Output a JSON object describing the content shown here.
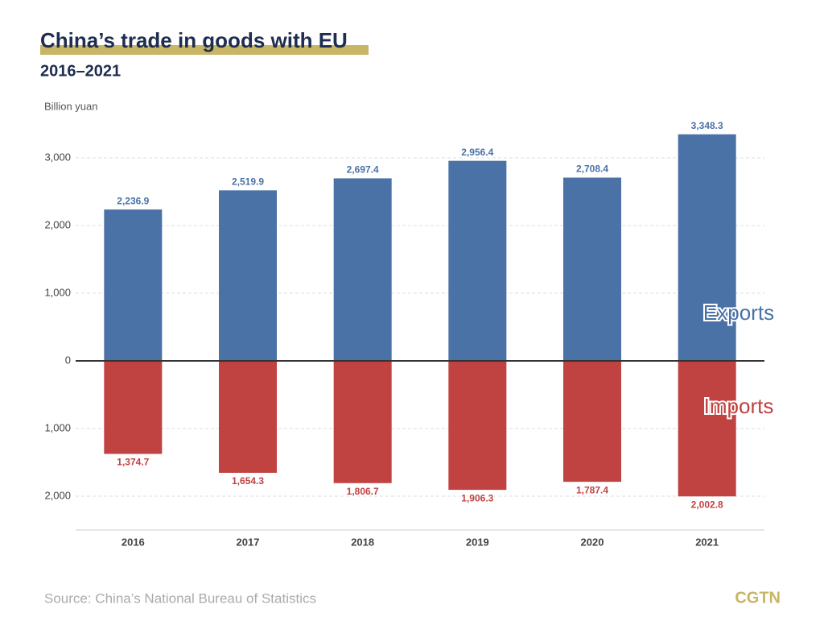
{
  "chart_data": {
    "type": "diverging-bar",
    "title": "China’s trade in goods with EU",
    "subtitle": "2016–2021",
    "y_label": "Billion yuan",
    "source": "Source: China’s National Bureau of Statistics",
    "brand": "CGTN",
    "categories": [
      "2016",
      "2017",
      "2018",
      "2019",
      "2020",
      "2021"
    ],
    "series": [
      {
        "name": "Exports",
        "color": "#4a72a6",
        "values": [
          2236.9,
          2519.9,
          2697.4,
          2956.4,
          2708.4,
          3348.3
        ],
        "value_labels": [
          "2,236.9",
          "2,519.9",
          "2,697.4",
          "2,956.4",
          "2,708.4",
          "3,348.3"
        ]
      },
      {
        "name": "Imports",
        "color": "#c04241",
        "axis": "y2",
        "values": [
          1374.7,
          1654.3,
          1806.7,
          1906.3,
          1787.4,
          2002.8
        ],
        "value_labels": [
          "1,374.7",
          "1,654.3",
          "1,806.7",
          "1,906.3",
          "1,787.4",
          "2,002.8"
        ]
      }
    ],
    "ylim": [
      0,
      3500
    ],
    "yticks": [
      0,
      {
        "value": 1000,
        "label": "1,000"
      },
      {
        "value": 2000,
        "label": "2,000"
      },
      {
        "value": 3000,
        "label": "3,000"
      }
    ],
    "y2lim": [
      0,
      2500
    ],
    "y2_direction": "down",
    "y2ticks": [
      {
        "value": 1000,
        "label": "1,000"
      },
      {
        "value": 2000,
        "label": "2,000"
      }
    ],
    "grid": true
  }
}
